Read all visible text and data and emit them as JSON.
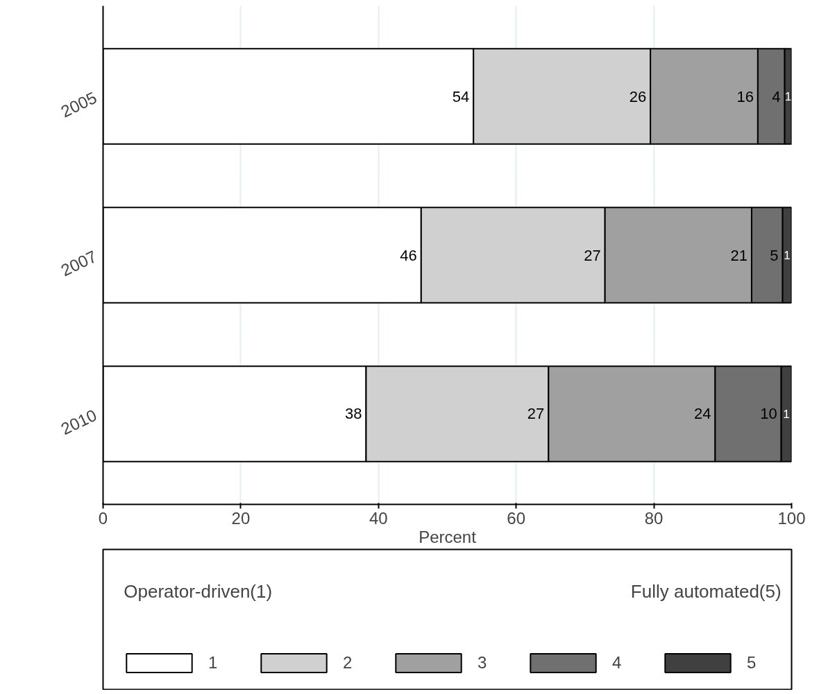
{
  "chart_data": {
    "type": "bar",
    "orientation": "horizontal",
    "stacked": true,
    "categories": [
      "2005",
      "2007",
      "2010"
    ],
    "xlabel": "Percent",
    "xlim": [
      0,
      100
    ],
    "xticks": [
      0,
      20,
      40,
      60,
      80,
      100
    ],
    "grid": "x",
    "legend": "bottom",
    "annotations": [
      "Operator-driven(1)",
      "Fully automated(5)"
    ],
    "series": [
      {
        "name": "1",
        "color": "#ffffff",
        "values": [
          53.8,
          46.2,
          38.2
        ],
        "value_labels": [
          "54",
          "46",
          "38"
        ]
      },
      {
        "name": "2",
        "color": "#d0d0d0",
        "values": [
          25.7,
          26.7,
          26.5
        ],
        "value_labels": [
          "26",
          "27",
          "27"
        ]
      },
      {
        "name": "3",
        "color": "#a0a0a0",
        "values": [
          15.6,
          21.3,
          24.2
        ],
        "value_labels": [
          "16",
          "21",
          "24"
        ]
      },
      {
        "name": "4",
        "color": "#707070",
        "values": [
          3.9,
          4.5,
          9.6
        ],
        "value_labels": [
          "4",
          "5",
          "10"
        ]
      },
      {
        "name": "5",
        "color": "#404040",
        "values": [
          1.0,
          1.3,
          1.5
        ],
        "value_labels": [
          "1",
          "1",
          "1"
        ]
      }
    ]
  }
}
